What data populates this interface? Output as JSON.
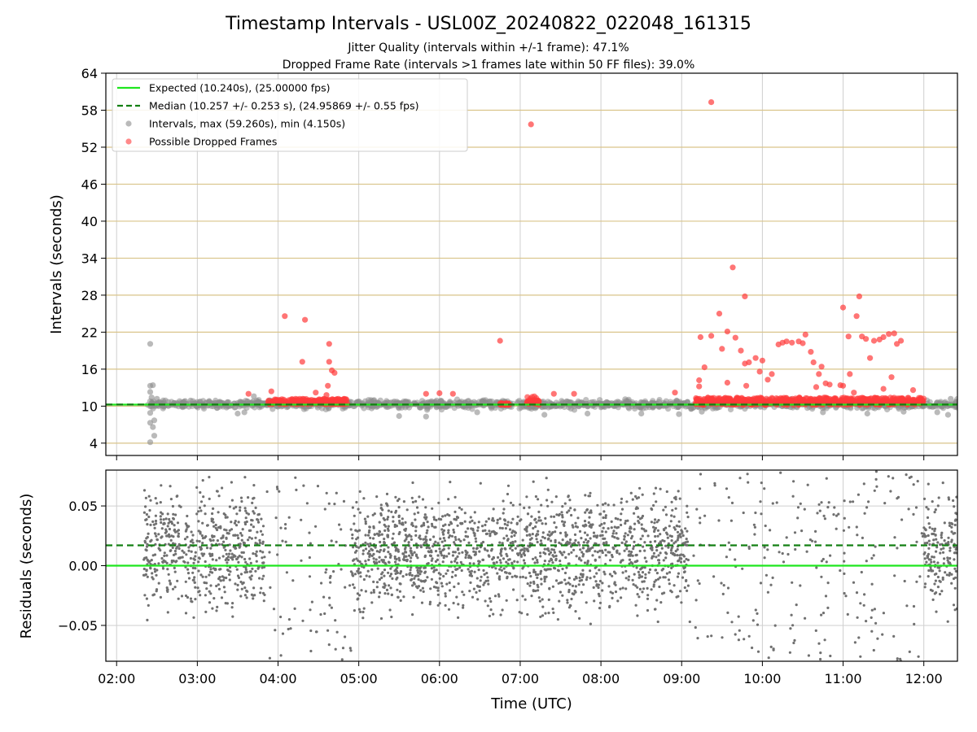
{
  "chart_data": [
    {
      "type": "scatter",
      "panel": "intervals",
      "title": "Timestamp Intervals - USL00Z_20240822_022048_161315",
      "subtitle_lines": [
        "Jitter Quality (intervals within +/-1 frame): 47.1%",
        "Dropped Frame Rate (intervals >1 frames late within 50 FF files): 39.0%"
      ],
      "ylabel": "Intervals (seconds)",
      "ylim": [
        2,
        64
      ],
      "yticks": [
        "4",
        "10",
        "16",
        "22",
        "28",
        "34",
        "40",
        "46",
        "52",
        "58",
        "64"
      ],
      "xlim": [
        "01:52",
        "12:25"
      ],
      "grid": true,
      "legend_position": "top-left",
      "expected_interval": 10.24,
      "median_interval": 10.257,
      "legend": [
        {
          "label": "Expected (10.240s), (25.00000 fps)",
          "style": "solid-line",
          "color": "#1ee61e"
        },
        {
          "label": "Median (10.257 +/- 0.253 s), (24.95869 +/- 0.55 fps)",
          "style": "dashed-line",
          "color": "#137f13"
        },
        {
          "label": "Intervals, max (59.260s), min (4.150s)",
          "style": "marker",
          "color": "#8c8c8c"
        },
        {
          "label": "Possible Dropped Frames",
          "style": "marker",
          "color": "#ff3b3b"
        }
      ],
      "series": [
        {
          "name": "Possible Dropped Frames",
          "color": "#ff3b3b",
          "points": [
            [
              "04:05",
              24.6
            ],
            [
              "04:20",
              24.0
            ],
            [
              "04:18",
              17.2
            ],
            [
              "04:37",
              13.3
            ],
            [
              "04:42",
              15.4
            ],
            [
              "04:38",
              17.2
            ],
            [
              "04:38",
              20.1
            ],
            [
              "04:40",
              15.8
            ],
            [
              "03:38",
              12.0
            ],
            [
              "03:55",
              12.4
            ],
            [
              "04:28",
              12.2
            ],
            [
              "04:36",
              11.8
            ],
            [
              "06:45",
              20.6
            ],
            [
              "07:08",
              55.7
            ],
            [
              "09:22",
              59.3
            ],
            [
              "09:38",
              32.5
            ],
            [
              "09:47",
              27.8
            ],
            [
              "09:28",
              25.0
            ],
            [
              "09:14",
              21.2
            ],
            [
              "09:22",
              21.4
            ],
            [
              "09:34",
              22.1
            ],
            [
              "09:40",
              21.1
            ],
            [
              "09:30",
              19.3
            ],
            [
              "09:47",
              16.9
            ],
            [
              "09:50",
              17.1
            ],
            [
              "09:44",
              19.0
            ],
            [
              "09:17",
              16.3
            ],
            [
              "09:13",
              14.2
            ],
            [
              "09:13",
              13.2
            ],
            [
              "09:34",
              13.8
            ],
            [
              "09:48",
              13.3
            ],
            [
              "09:55",
              17.8
            ],
            [
              "09:58",
              15.6
            ],
            [
              "10:00",
              17.4
            ],
            [
              "10:04",
              14.3
            ],
            [
              "10:07",
              15.2
            ],
            [
              "10:12",
              20.0
            ],
            [
              "10:15",
              20.3
            ],
            [
              "10:18",
              20.5
            ],
            [
              "10:22",
              20.3
            ],
            [
              "10:27",
              20.5
            ],
            [
              "10:32",
              21.6
            ],
            [
              "10:30",
              20.2
            ],
            [
              "10:36",
              18.8
            ],
            [
              "10:38",
              17.1
            ],
            [
              "10:42",
              15.2
            ],
            [
              "10:44",
              16.4
            ],
            [
              "10:47",
              13.7
            ],
            [
              "10:50",
              13.5
            ],
            [
              "10:40",
              13.1
            ],
            [
              "10:58",
              13.4
            ],
            [
              "11:00",
              26.0
            ],
            [
              "11:04",
              21.3
            ],
            [
              "11:12",
              27.8
            ],
            [
              "11:10",
              24.6
            ],
            [
              "11:14",
              21.3
            ],
            [
              "11:17",
              20.9
            ],
            [
              "11:20",
              17.8
            ],
            [
              "11:23",
              20.6
            ],
            [
              "11:27",
              20.8
            ],
            [
              "11:30",
              21.2
            ],
            [
              "11:34",
              21.7
            ],
            [
              "11:38",
              21.8
            ],
            [
              "11:40",
              20.1
            ],
            [
              "11:43",
              20.6
            ],
            [
              "11:30",
              12.8
            ],
            [
              "11:36",
              14.7
            ],
            [
              "11:05",
              15.2
            ],
            [
              "11:00",
              13.3
            ],
            [
              "11:08",
              12.2
            ],
            [
              "11:52",
              12.6
            ],
            [
              "08:55",
              12.2
            ],
            [
              "07:25",
              12.0
            ],
            [
              "07:40",
              12.0
            ],
            [
              "05:50",
              12.0
            ],
            [
              "06:00",
              12.1
            ],
            [
              "06:10",
              12.0
            ]
          ],
          "dense_clusters": [
            {
              "x_start": "03:52",
              "x_end": "04:52",
              "y_min": 10.3,
              "y_max": 11.2
            },
            {
              "x_start": "06:45",
              "x_end": "06:52",
              "y_min": 10.1,
              "y_max": 10.5
            },
            {
              "x_start": "07:05",
              "x_end": "07:15",
              "y_min": 10.2,
              "y_max": 11.6
            },
            {
              "x_start": "09:10",
              "x_end": "12:00",
              "y_min": 10.2,
              "y_max": 11.4
            }
          ]
        },
        {
          "name": "Intervals",
          "color": "#8c8c8c",
          "points": [
            [
              "02:25",
              20.1
            ],
            [
              "02:25",
              13.3
            ],
            [
              "02:27",
              13.4
            ],
            [
              "02:25",
              12.3
            ],
            [
              "02:26",
              11.4
            ],
            [
              "02:25",
              8.9
            ],
            [
              "02:25",
              7.3
            ],
            [
              "02:27",
              6.6
            ],
            [
              "02:28",
              5.2
            ],
            [
              "02:25",
              4.15
            ],
            [
              "02:28",
              7.7
            ],
            [
              "02:30",
              11.2
            ],
            [
              "03:30",
              8.8
            ],
            [
              "03:35",
              9.0
            ],
            [
              "03:42",
              11.6
            ],
            [
              "05:30",
              8.4
            ],
            [
              "05:50",
              8.3
            ],
            [
              "06:28",
              9.0
            ],
            [
              "07:18",
              8.6
            ],
            [
              "07:50",
              8.8
            ],
            [
              "08:30",
              8.8
            ],
            [
              "08:58",
              8.7
            ],
            [
              "09:15",
              9.1
            ],
            [
              "10:45",
              9.0
            ],
            [
              "11:18",
              8.8
            ],
            [
              "11:45",
              9.1
            ],
            [
              "12:10",
              9.0
            ],
            [
              "12:20",
              11.2
            ],
            [
              "12:18",
              8.6
            ],
            [
              "02:55",
              10.9
            ]
          ],
          "band": {
            "x_start": "02:23",
            "x_end": "12:25",
            "y_min": 9.3,
            "y_max": 11.3
          }
        }
      ]
    },
    {
      "type": "scatter",
      "panel": "residuals",
      "ylabel": "Residuals (seconds)",
      "xlabel": "Time (UTC)",
      "ylim": [
        -0.08,
        0.08
      ],
      "yticks": [
        "−0.05",
        "0.00",
        "0.05"
      ],
      "xticks": [
        "02:00",
        "03:00",
        "04:00",
        "05:00",
        "06:00",
        "07:00",
        "08:00",
        "09:00",
        "10:00",
        "11:00",
        "12:00"
      ],
      "xlim": [
        "01:52",
        "12:25"
      ],
      "grid": true,
      "expected_residual": 0.0,
      "median_residual": 0.017,
      "series": [
        {
          "name": "Residuals",
          "color": "#707070",
          "dense_regions": [
            {
              "x_start": "02:20",
              "x_end": "03:50",
              "density": "high"
            },
            {
              "x_start": "03:50",
              "x_end": "04:55",
              "density": "low"
            },
            {
              "x_start": "04:55",
              "x_end": "09:05",
              "density": "high"
            },
            {
              "x_start": "09:05",
              "x_end": "12:00",
              "density": "low"
            },
            {
              "x_start": "12:00",
              "x_end": "12:25",
              "density": "high"
            }
          ]
        }
      ]
    }
  ]
}
